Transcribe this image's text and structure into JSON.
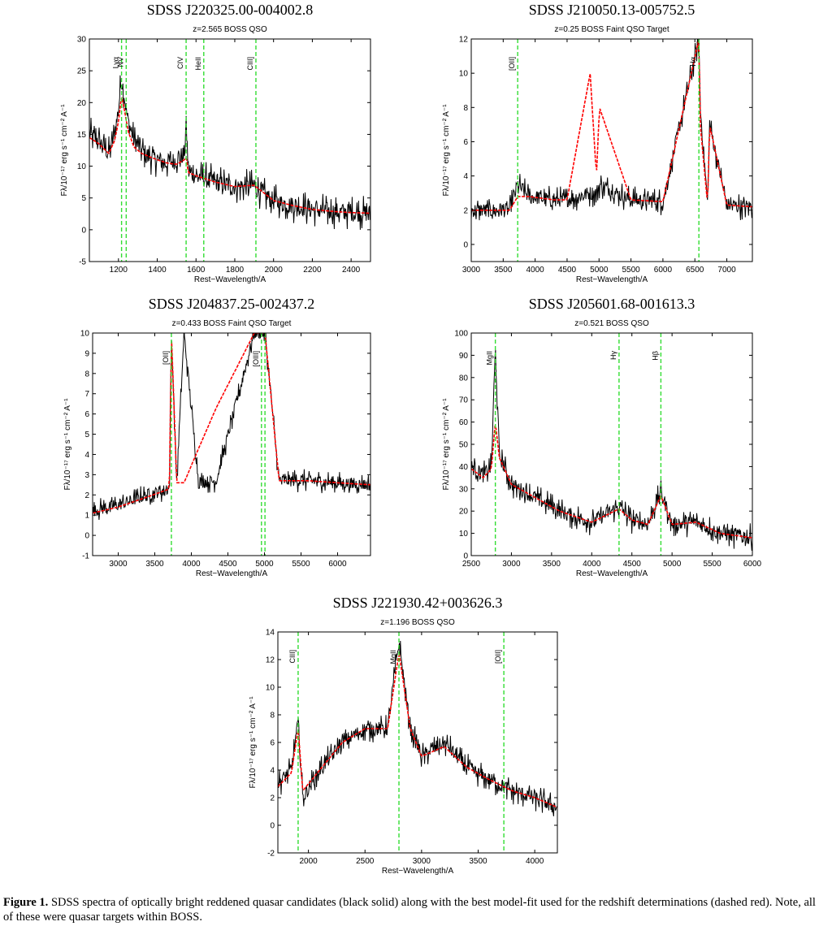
{
  "caption": {
    "label": "Figure 1.",
    "text": "SDSS spectra of optically bright reddened quasar candidates (black solid) along with the best model-fit used for the redshift determinations (dashed red). Note, all of these were quasar targets within BOSS."
  },
  "chart_data": [
    {
      "type": "line",
      "title": "SDSS J220325.00-004002.8",
      "subtitle": "z=2.565 BOSS QSO",
      "xlabel": "Rest−Wavelength/A",
      "ylabel": "Fλ/10⁻¹⁷ erg s⁻¹ cm⁻² A⁻¹",
      "xlim": [
        1050,
        2500
      ],
      "ylim": [
        -5,
        30
      ],
      "xticks": [
        1200,
        1400,
        1600,
        1800,
        2000,
        2200,
        2400
      ],
      "yticks": [
        -5,
        0,
        5,
        10,
        15,
        20,
        25,
        30
      ],
      "lines": [
        {
          "label": "Lyα",
          "x": 1216
        },
        {
          "label": "NV",
          "x": 1240
        },
        {
          "label": "CIV",
          "x": 1549
        },
        {
          "label": "HeII",
          "x": 1640
        },
        {
          "label": "CIII]",
          "x": 1909
        }
      ],
      "series": [
        {
          "style": "black-solid",
          "x": [
            1050,
            1100,
            1150,
            1180,
            1200,
            1216,
            1230,
            1250,
            1280,
            1320,
            1360,
            1400,
            1450,
            1500,
            1540,
            1550,
            1560,
            1600,
            1700,
            1800,
            1900,
            1950,
            2000,
            2100,
            2200,
            2300,
            2400,
            2500
          ],
          "y": [
            15,
            14,
            12,
            15,
            19,
            24,
            21,
            17,
            14,
            12.5,
            11.5,
            11,
            10.5,
            11,
            12,
            17,
            9,
            8.5,
            7.5,
            6.8,
            6.8,
            5.5,
            4.5,
            3.8,
            3.2,
            2.9,
            2.7,
            2.6
          ],
          "noise": 1.5
        },
        {
          "style": "red-dashed",
          "x": [
            1050,
            1100,
            1150,
            1180,
            1200,
            1216,
            1230,
            1250,
            1280,
            1320,
            1360,
            1400,
            1450,
            1500,
            1540,
            1550,
            1560,
            1600,
            1700,
            1800,
            1900,
            1950,
            2000,
            2100,
            2200,
            2300,
            2400,
            2500
          ],
          "y": [
            14.5,
            13.5,
            12,
            14,
            17,
            21,
            19,
            15.5,
            13,
            12,
            11.5,
            11,
            10.5,
            10.3,
            11,
            11.5,
            9,
            8.5,
            7.5,
            6.8,
            7,
            5.8,
            4.6,
            3.8,
            3.2,
            2.9,
            2.7,
            2.6
          ]
        }
      ]
    },
    {
      "type": "line",
      "title": "SDSS J210050.13-005752.5",
      "subtitle": "z=0.25 BOSS Faint QSO Target",
      "xlabel": "Rest−Wavelength/A",
      "ylabel": "Fλ/10⁻¹⁷ erg s⁻¹ cm⁻² A⁻¹",
      "xlim": [
        3000,
        7400
      ],
      "ylim": [
        -1,
        12
      ],
      "xticks": [
        3000,
        3500,
        4000,
        4500,
        5000,
        5500,
        6000,
        6500,
        7000
      ],
      "yticks": [
        0,
        2,
        4,
        6,
        8,
        10,
        12
      ],
      "lines": [
        {
          "label": "[OII]",
          "x": 3727
        },
        {
          "label": "Hα",
          "x": 6563
        }
      ],
      "series": [
        {
          "style": "black-solid",
          "x": [
            3000,
            3300,
            3600,
            3727,
            3900,
            4300,
            4500,
            4861,
            4959,
            5007,
            5500,
            6000,
            6563,
            6584,
            6700,
            6730,
            7000,
            7400
          ],
          "y": [
            2,
            2,
            2,
            3.5,
            2.8,
            2.6,
            2.6,
            3,
            3,
            3.5,
            2.6,
            2.5,
            12,
            8,
            2.3,
            7,
            2.3,
            2.2
          ],
          "noise": 1.2
        },
        {
          "style": "red-dashed",
          "x": [
            3000,
            3300,
            3600,
            3727,
            3900,
            4300,
            4500,
            4861,
            4959,
            5007,
            5500,
            6000,
            6563,
            6584,
            6700,
            6730,
            7000,
            7400
          ],
          "y": [
            2,
            2,
            2,
            2.8,
            2.8,
            2.6,
            2.6,
            10,
            4,
            8,
            2.6,
            2.5,
            12,
            7,
            2.3,
            7,
            2.3,
            2.2
          ]
        }
      ]
    },
    {
      "type": "line",
      "title": "SDSS J204837.25-002437.2",
      "subtitle": "z=0.433 BOSS Faint QSO Target",
      "xlabel": "Rest−Wavelength/A",
      "ylabel": "Fλ/10⁻¹⁷ erg s⁻¹ cm⁻² A⁻¹",
      "xlim": [
        2650,
        6450
      ],
      "ylim": [
        -1,
        10
      ],
      "xticks": [
        3000,
        3500,
        4000,
        4500,
        5000,
        5500,
        6000
      ],
      "yticks": [
        -1,
        0,
        1,
        2,
        3,
        4,
        5,
        6,
        7,
        8,
        9,
        10
      ],
      "lines": [
        {
          "label": "[OII]",
          "x": 3727
        },
        {
          "label": "[OIII]",
          "x": 4959
        },
        {
          "label": "",
          "x": 5007
        }
      ],
      "series": [
        {
          "style": "black-solid",
          "x": [
            2650,
            3000,
            3400,
            3700,
            3727,
            3800,
            3900,
            4100,
            4340,
            4861,
            4959,
            5007,
            5200,
            5600,
            6000,
            6450
          ],
          "y": [
            1.2,
            1.5,
            2,
            2.3,
            10,
            2.6,
            10,
            2.6,
            2.7,
            10,
            10,
            10,
            2.7,
            2.7,
            2.6,
            2.5
          ],
          "noise": 1.0
        },
        {
          "style": "red-dashed",
          "x": [
            2650,
            3000,
            3400,
            3700,
            3727,
            3800,
            3900,
            4100,
            4340,
            4861,
            4959,
            5007,
            5200,
            5600,
            6000,
            6450
          ],
          "y": [
            1.1,
            1.4,
            1.9,
            2.3,
            10,
            2.6,
            2.6,
            4.3,
            6.3,
            10,
            10,
            10,
            2.7,
            2.7,
            2.6,
            2.5
          ]
        }
      ]
    },
    {
      "type": "line",
      "title": "SDSS J205601.68-001613.3",
      "subtitle": "z=0.521 BOSS QSO",
      "xlabel": "Rest−Wavelength/A",
      "ylabel": "Fλ/10⁻¹⁷ erg s⁻¹ cm⁻² A⁻¹",
      "xlim": [
        2500,
        6000
      ],
      "ylim": [
        0,
        100
      ],
      "xticks": [
        2500,
        3000,
        3500,
        4000,
        4500,
        5000,
        5500,
        6000
      ],
      "yticks": [
        0,
        10,
        20,
        30,
        40,
        50,
        60,
        70,
        80,
        90,
        100
      ],
      "lines": [
        {
          "label": "MgII",
          "x": 2800
        },
        {
          "label": "Hγ",
          "x": 4340
        },
        {
          "label": "Hβ",
          "x": 4861
        }
      ],
      "series": [
        {
          "style": "black-solid",
          "x": [
            2500,
            2650,
            2750,
            2800,
            2850,
            3000,
            3200,
            3400,
            3600,
            4000,
            4340,
            4500,
            4700,
            4861,
            5000,
            5300,
            5600,
            6000
          ],
          "y": [
            40,
            36,
            40,
            93,
            45,
            32,
            28,
            24,
            20,
            15,
            22,
            16,
            14,
            29,
            14,
            15,
            10,
            8
          ],
          "noise": 1.2
        },
        {
          "style": "red-dashed",
          "x": [
            2500,
            2650,
            2750,
            2800,
            2850,
            3000,
            3200,
            3400,
            3600,
            4000,
            4340,
            4500,
            4700,
            4861,
            5000,
            5300,
            5600,
            6000
          ],
          "y": [
            39,
            35,
            39,
            60,
            44,
            32,
            28,
            24,
            20,
            15,
            21,
            16,
            14,
            27,
            14,
            15,
            10,
            8
          ]
        }
      ]
    },
    {
      "type": "line",
      "title": "SDSS J221930.42+003626.3",
      "subtitle": "z=1.196 BOSS QSO",
      "xlabel": "Rest−Wavelength/A",
      "ylabel": "Fλ/10⁻¹⁷ erg s⁻¹ cm⁻² A⁻¹",
      "xlim": [
        1730,
        4200
      ],
      "ylim": [
        -2,
        14
      ],
      "xticks": [
        2000,
        2500,
        3000,
        3500,
        4000
      ],
      "yticks": [
        -2,
        0,
        2,
        4,
        6,
        8,
        10,
        12,
        14
      ],
      "lines": [
        {
          "label": "CIII]",
          "x": 1909
        },
        {
          "label": "MgII",
          "x": 2800
        },
        {
          "label": "[OII]",
          "x": 3727
        }
      ],
      "series": [
        {
          "style": "black-solid",
          "x": [
            1730,
            1850,
            1909,
            1950,
            2100,
            2300,
            2500,
            2700,
            2800,
            2900,
            3000,
            3200,
            3400,
            3600,
            3800,
            4000,
            4200
          ],
          "y": [
            3,
            4,
            7.5,
            2,
            4,
            6,
            7,
            7,
            13.3,
            7,
            5,
            6,
            4.2,
            3.3,
            2.5,
            2,
            1.3
          ],
          "noise": 1.2
        },
        {
          "style": "red-dashed",
          "x": [
            1730,
            1850,
            1909,
            1950,
            2100,
            2300,
            2500,
            2700,
            2800,
            2900,
            3000,
            3200,
            3400,
            3600,
            3800,
            4000,
            4200
          ],
          "y": [
            2.8,
            3.8,
            7,
            2.5,
            4,
            6,
            7,
            7,
            12.5,
            7,
            5,
            5.7,
            4.2,
            3.3,
            2.5,
            2,
            1.3
          ]
        }
      ]
    }
  ]
}
